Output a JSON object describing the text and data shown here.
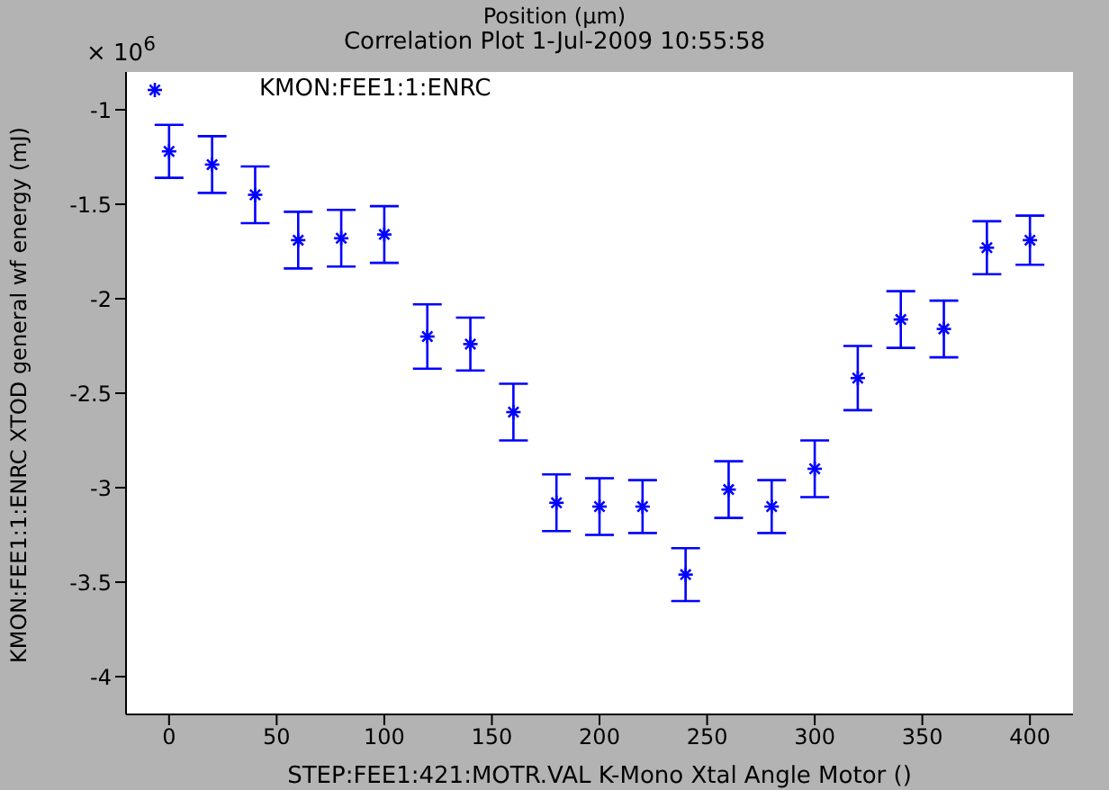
{
  "chart_data": {
    "type": "scatter",
    "title": "Correlation Plot 1-Jul-2009 10:55:58",
    "subtitle": "Position (μm)",
    "xlabel": "STEP:FEE1:421:MOTR.VAL K-Mono Xtal Angle Motor ()",
    "ylabel": "KMON:FEE1:1:ENRC XTOD general wf energy (mJ)",
    "annotations": [
      "× 10$^{6}$"
    ],
    "x": [
      0,
      20,
      40,
      60,
      80,
      100,
      120,
      140,
      160,
      180,
      200,
      220,
      240,
      260,
      280,
      300,
      320,
      340,
      360,
      380,
      400
    ],
    "series": [
      {
        "name": "KMON:FEE1:1:ENRC",
        "color": "#0000ff",
        "values": [
          -1.22,
          -1.29,
          -1.45,
          -1.69,
          -1.68,
          -1.66,
          -2.2,
          -2.24,
          -2.6,
          -3.08,
          -3.1,
          -3.1,
          -3.46,
          -3.01,
          -3.1,
          -2.9,
          -2.42,
          -2.11,
          -2.16,
          -1.73,
          -1.69
        ],
        "errors": [
          0.14,
          0.15,
          0.15,
          0.15,
          0.15,
          0.15,
          0.17,
          0.14,
          0.15,
          0.15,
          0.15,
          0.14,
          0.14,
          0.15,
          0.14,
          0.15,
          0.17,
          0.15,
          0.15,
          0.14,
          0.13
        ]
      }
    ],
    "xlim": [
      -20,
      420
    ],
    "xticks": [
      0,
      50,
      100,
      150,
      200,
      250,
      300,
      350,
      400
    ],
    "ylim": [
      -4.2,
      -0.8
    ],
    "yticks": [
      -4,
      -3.5,
      -3,
      -2.5,
      -2,
      -1.5,
      -1
    ],
    "marker": "cross",
    "legend": "top left",
    "grid": false
  }
}
